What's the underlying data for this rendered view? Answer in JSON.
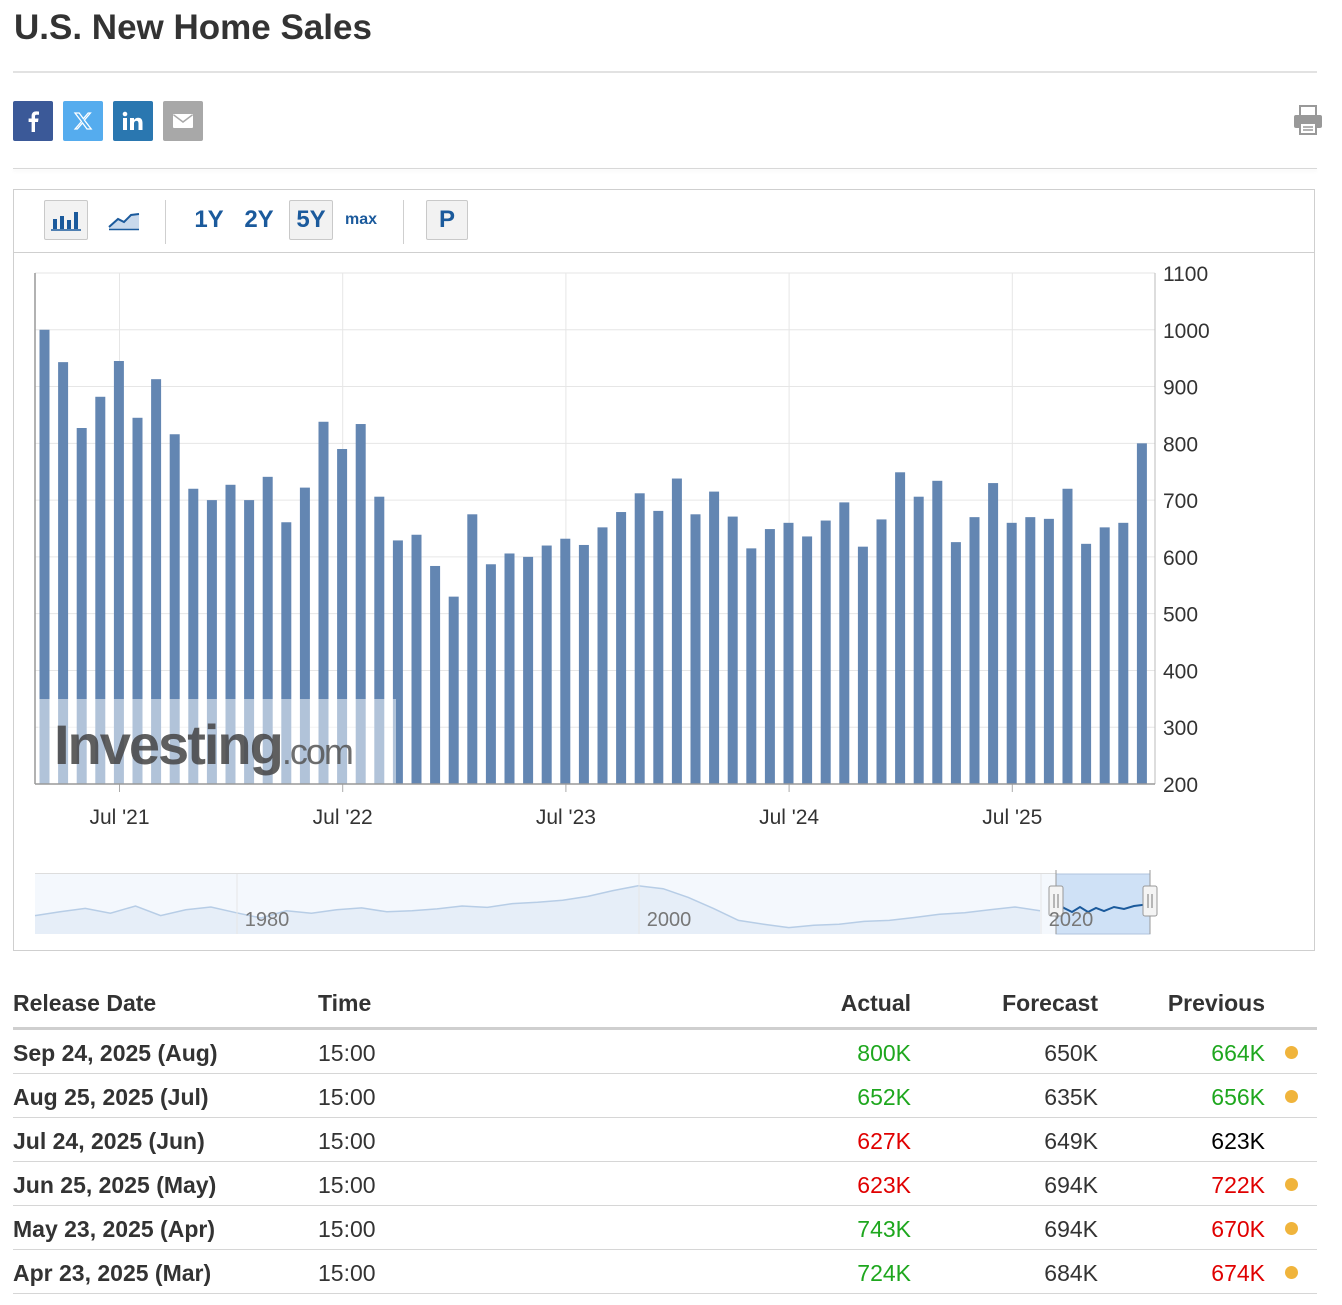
{
  "page": {
    "title": "U.S. New Home Sales"
  },
  "share": {
    "buttons": [
      {
        "name": "facebook",
        "color": "#3b5998"
      },
      {
        "name": "x-twitter",
        "color": "#55acee"
      },
      {
        "name": "linkedin",
        "color": "#2a77b0"
      },
      {
        "name": "email",
        "color": "#a8a8a8"
      }
    ],
    "print_icon": "printer-icon"
  },
  "toolbar": {
    "ranges": [
      "1Y",
      "2Y",
      "5Y",
      "max"
    ],
    "selected_range": "5Y",
    "p_button": "P"
  },
  "colors": {
    "bar": "#6386b2",
    "green": "#1ea71e",
    "red": "#e00000",
    "link": "#1b5a9c",
    "dot": "#f0b43c"
  },
  "chart_data": {
    "type": "bar",
    "title": "U.S. New Home Sales",
    "ylim": [
      200,
      1100
    ],
    "yticks": [
      200,
      300,
      400,
      500,
      600,
      700,
      800,
      900,
      1000,
      1100
    ],
    "x_tick_labels": [
      "Jul '21",
      "Jul '22",
      "Jul '23",
      "Jul '24",
      "Jul '25"
    ],
    "values": [
      1000,
      943,
      827,
      882,
      945,
      845,
      913,
      816,
      720,
      700,
      727,
      700,
      741,
      661,
      722,
      838,
      790,
      834,
      706,
      629,
      639,
      584,
      530,
      675,
      587,
      606,
      600,
      620,
      632,
      621,
      652,
      679,
      712,
      681,
      738,
      675,
      715,
      671,
      615,
      649,
      660,
      636,
      664,
      696,
      618,
      666,
      749,
      706,
      734,
      626,
      670,
      730,
      660,
      670,
      667,
      720,
      623,
      652,
      660,
      800
    ],
    "watermark": "Investing.com",
    "navigator_labels": [
      "1980",
      "2000",
      "2020"
    ]
  },
  "table": {
    "headers": [
      "Release Date",
      "Time",
      "Actual",
      "Forecast",
      "Previous"
    ],
    "rows": [
      {
        "date": "Sep 24, 2025 (Aug)",
        "time": "15:00",
        "actual": "800K",
        "actual_color": "#1ea71e",
        "forecast": "650K",
        "previous": "664K",
        "previous_color": "#1ea71e",
        "revised": true
      },
      {
        "date": "Aug 25, 2025 (Jul)",
        "time": "15:00",
        "actual": "652K",
        "actual_color": "#1ea71e",
        "forecast": "635K",
        "previous": "656K",
        "previous_color": "#1ea71e",
        "revised": true
      },
      {
        "date": "Jul 24, 2025 (Jun)",
        "time": "15:00",
        "actual": "627K",
        "actual_color": "#e00000",
        "forecast": "649K",
        "previous": "623K",
        "previous_color": "#000000",
        "revised": false
      },
      {
        "date": "Jun 25, 2025 (May)",
        "time": "15:00",
        "actual": "623K",
        "actual_color": "#e00000",
        "forecast": "694K",
        "previous": "722K",
        "previous_color": "#e00000",
        "revised": true
      },
      {
        "date": "May 23, 2025 (Apr)",
        "time": "15:00",
        "actual": "743K",
        "actual_color": "#1ea71e",
        "forecast": "694K",
        "previous": "670K",
        "previous_color": "#e00000",
        "revised": true
      },
      {
        "date": "Apr 23, 2025 (Mar)",
        "time": "15:00",
        "actual": "724K",
        "actual_color": "#1ea71e",
        "forecast": "684K",
        "previous": "674K",
        "previous_color": "#e00000",
        "revised": true
      }
    ]
  }
}
